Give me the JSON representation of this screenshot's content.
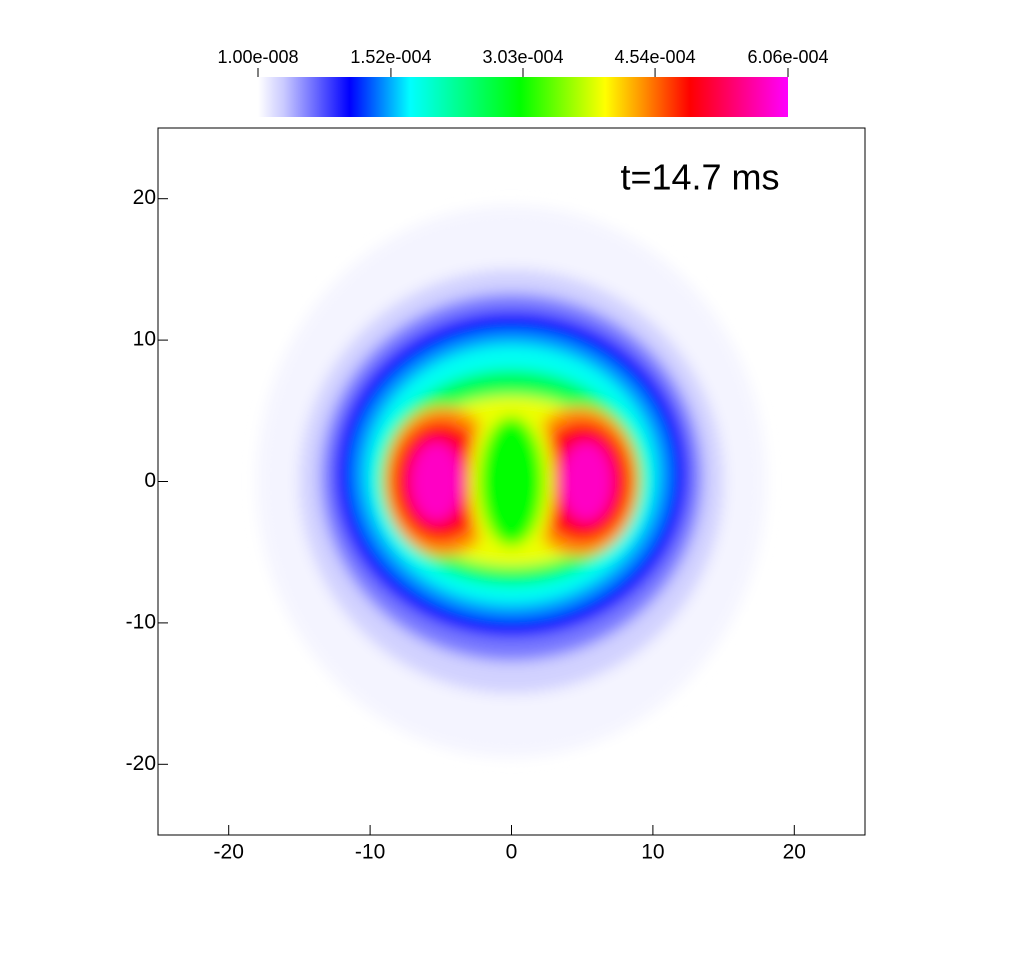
{
  "chart_data": {
    "type": "contour",
    "annotation": "t=14.7 ms",
    "xlim": [
      -25,
      25
    ],
    "ylim": [
      -25,
      25
    ],
    "xticks": [
      -20,
      -10,
      0,
      10,
      20
    ],
    "yticks": [
      -20,
      -10,
      0,
      10,
      20
    ],
    "colorbar": {
      "lim": [
        1e-08,
        0.000606
      ],
      "ticks": [
        {
          "value": 1e-08,
          "label": "1.00e-008"
        },
        {
          "value": 0.000152,
          "label": "1.52e-004"
        },
        {
          "value": 0.000303,
          "label": "3.03e-004"
        },
        {
          "value": 0.000454,
          "label": "4.54e-004"
        },
        {
          "value": 0.000606,
          "label": "6.06e-004"
        }
      ],
      "colormap": [
        {
          "value": 1e-08,
          "color": "#ffffff"
        },
        {
          "value": 3e-05,
          "color": "#c8c8ff"
        },
        {
          "value": 0.000105,
          "color": "#0000ff"
        },
        {
          "value": 0.000174,
          "color": "#00ffff"
        },
        {
          "value": 0.0003,
          "color": "#00ff00"
        },
        {
          "value": 0.000397,
          "color": "#ffff00"
        },
        {
          "value": 0.000437,
          "color": "#ff9900"
        },
        {
          "value": 0.000494,
          "color": "#ff0000"
        },
        {
          "value": 0.000606,
          "color": "#ff00ff"
        }
      ]
    },
    "regions": [
      {
        "value": 6e-06,
        "cx": 0,
        "cy": 0,
        "rx": 18,
        "ry": 19.5
      },
      {
        "value": 2.5e-05,
        "cx": 0,
        "cy": 0,
        "rx": 15,
        "ry": 15
      },
      {
        "value": 6e-05,
        "cx": 0,
        "cy": 0.3,
        "rx": 13.5,
        "ry": 13
      },
      {
        "value": 0.000105,
        "cx": 0,
        "cy": 0.5,
        "rx": 12.5,
        "ry": 11.5
      },
      {
        "value": 0.000145,
        "cx": 0,
        "cy": 0.5,
        "rx": 11.3,
        "ry": 10.2
      },
      {
        "value": 0.00018,
        "cx": 0,
        "cy": 0.5,
        "rx": 10.3,
        "ry": 9.2
      },
      {
        "value": 0.00026,
        "cx": 0,
        "cy": 0.3,
        "rx": 9.4,
        "ry": 7.6
      },
      {
        "value": 0.00039,
        "cx": 0,
        "cy": 0,
        "rx": 8.4,
        "ry": 6
      },
      {
        "value": 0.00044,
        "cx": -4.8,
        "cy": 0,
        "rx": 4.2,
        "ry": 5.3
      },
      {
        "value": 0.00044,
        "cx": 4.8,
        "cy": 0,
        "rx": 4.2,
        "ry": 5.3
      },
      {
        "value": 0.0005,
        "cx": -5,
        "cy": 0,
        "rx": 3.4,
        "ry": 4.3
      },
      {
        "value": 0.0005,
        "cx": 5,
        "cy": 0,
        "rx": 3.4,
        "ry": 4.3
      },
      {
        "value": 0.00058,
        "cx": -5.3,
        "cy": 0,
        "rx": 1.8,
        "ry": 2.8
      },
      {
        "value": 0.00058,
        "cx": 5.3,
        "cy": 0,
        "rx": 1.8,
        "ry": 2.8
      },
      {
        "value": 0.00039,
        "cx": 0,
        "cy": 0,
        "rx": 3,
        "ry": 5.8
      },
      {
        "value": 0.0003,
        "cx": 0,
        "cy": 0,
        "rx": 2.3,
        "ry": 4.6
      }
    ]
  }
}
